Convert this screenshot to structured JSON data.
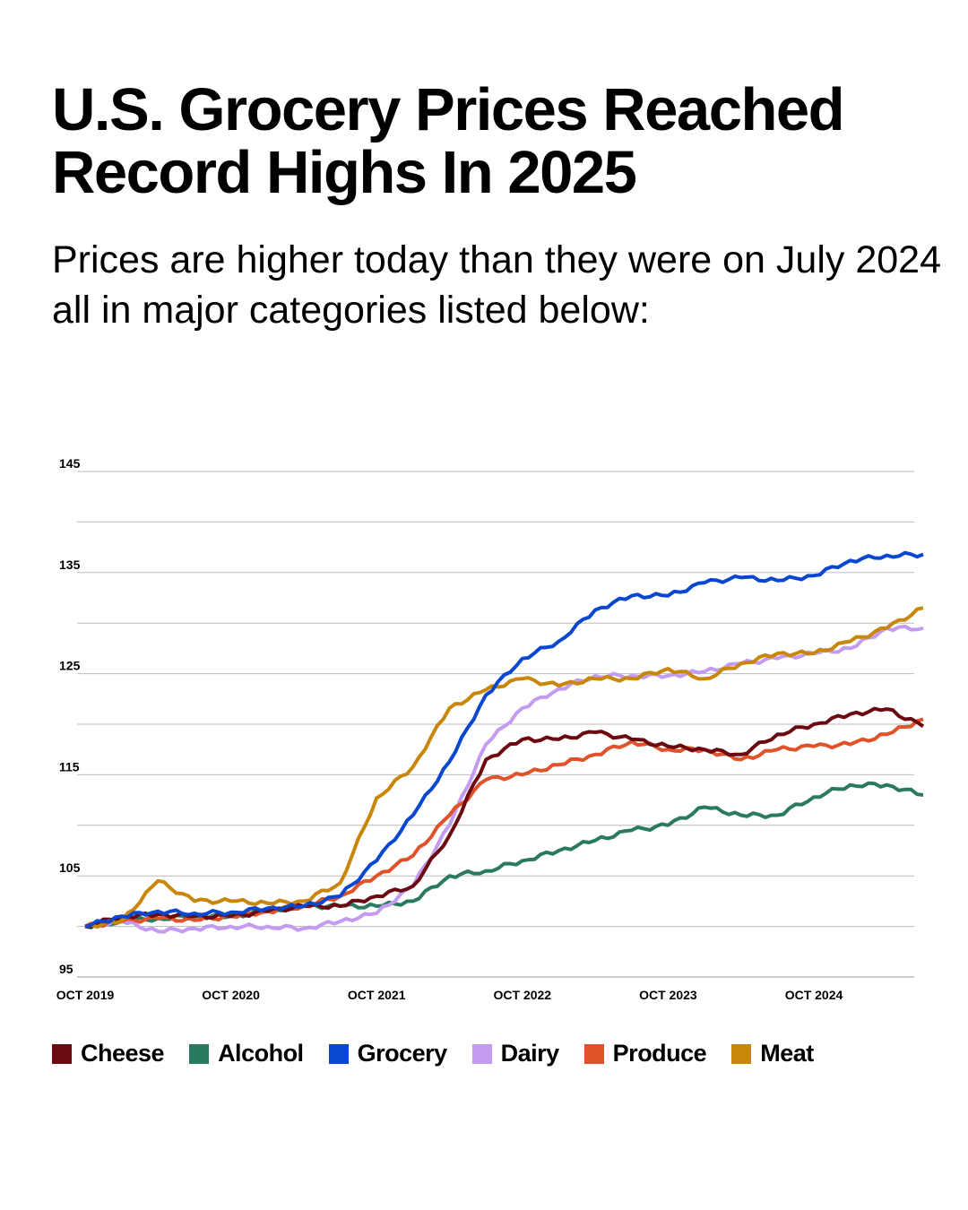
{
  "chart_data": {
    "type": "line",
    "title": "U.S. Grocery Prices Reached Record Highs In 2025",
    "subtitle": "Prices are higher today than they were on July 2024 all in major categories listed below:",
    "xlabel": "",
    "ylabel": "",
    "ylim": [
      95,
      145
    ],
    "y_gridlines": [
      95,
      100,
      105,
      110,
      115,
      120,
      125,
      130,
      135,
      140,
      145
    ],
    "y_tick_labels": [
      "95",
      "105",
      "115",
      "125",
      "135",
      "145"
    ],
    "x_tick_labels": [
      "OCT 2019",
      "OCT 2020",
      "OCT 2021",
      "OCT 2022",
      "OCT 2023",
      "OCT 2024"
    ],
    "x_range": [
      "2019-10",
      "2025-07"
    ],
    "grid": true,
    "legend_placement": "bottom",
    "x": [
      "2019-10",
      "2020-01",
      "2020-04",
      "2020-07",
      "2020-10",
      "2021-01",
      "2021-04",
      "2021-07",
      "2021-10",
      "2022-01",
      "2022-04",
      "2022-07",
      "2022-10",
      "2023-01",
      "2023-04",
      "2023-07",
      "2023-10",
      "2024-01",
      "2024-04",
      "2024-07",
      "2024-10",
      "2025-01",
      "2025-04",
      "2025-07"
    ],
    "series": [
      {
        "name": "Cheese",
        "color": "#6b0a10",
        "values": [
          100,
          101,
          101.2,
          101,
          101,
          101.5,
          102,
          102,
          103,
          104,
          109,
          116.5,
          118.5,
          118.5,
          119.2,
          118.5,
          117.8,
          117.5,
          117,
          119,
          120,
          121,
          121.5,
          119.8
        ]
      },
      {
        "name": "Alcohol",
        "color": "#2a7a5e",
        "values": [
          100,
          100.5,
          100.8,
          101,
          101,
          101.5,
          102,
          102,
          102,
          102.5,
          105,
          105.5,
          106.5,
          107.5,
          108.5,
          109.5,
          110,
          111.8,
          111,
          111,
          112.8,
          114,
          114,
          113
        ]
      },
      {
        "name": "Grocery",
        "color": "#0a47d0",
        "values": [
          100,
          101,
          101.5,
          101.3,
          101.4,
          101.8,
          102,
          103,
          106.5,
          111,
          116.3,
          122.9,
          126.5,
          128.2,
          131.3,
          132.7,
          132.7,
          134,
          134.5,
          134.2,
          134.7,
          136.2,
          136.7,
          136.8
        ]
      },
      {
        "name": "Dairy",
        "color": "#c39cf2",
        "values": [
          100,
          100.5,
          99.5,
          99.8,
          100,
          100,
          99.8,
          100.5,
          101.3,
          104,
          110,
          118,
          121.6,
          123.5,
          124.8,
          124.8,
          124.8,
          125.2,
          126,
          126.5,
          127,
          127.5,
          129.5,
          129.5
        ]
      },
      {
        "name": "Produce",
        "color": "#e0522a",
        "values": [
          100,
          100.5,
          100.8,
          100.6,
          101,
          101.5,
          102,
          103,
          105,
          107,
          111,
          114.5,
          115,
          116,
          117,
          118.3,
          117.5,
          117.5,
          116.5,
          117.5,
          117.8,
          118,
          119,
          120.5
        ]
      },
      {
        "name": "Meat",
        "color": "#c8860a",
        "values": [
          100,
          100.5,
          104.5,
          102.5,
          102.5,
          102.3,
          102.5,
          104.3,
          112.7,
          115.8,
          121.6,
          123.4,
          124.5,
          123.8,
          124.5,
          124.5,
          125.5,
          124.5,
          126,
          127,
          127,
          128.2,
          129.5,
          131.5
        ]
      }
    ]
  }
}
